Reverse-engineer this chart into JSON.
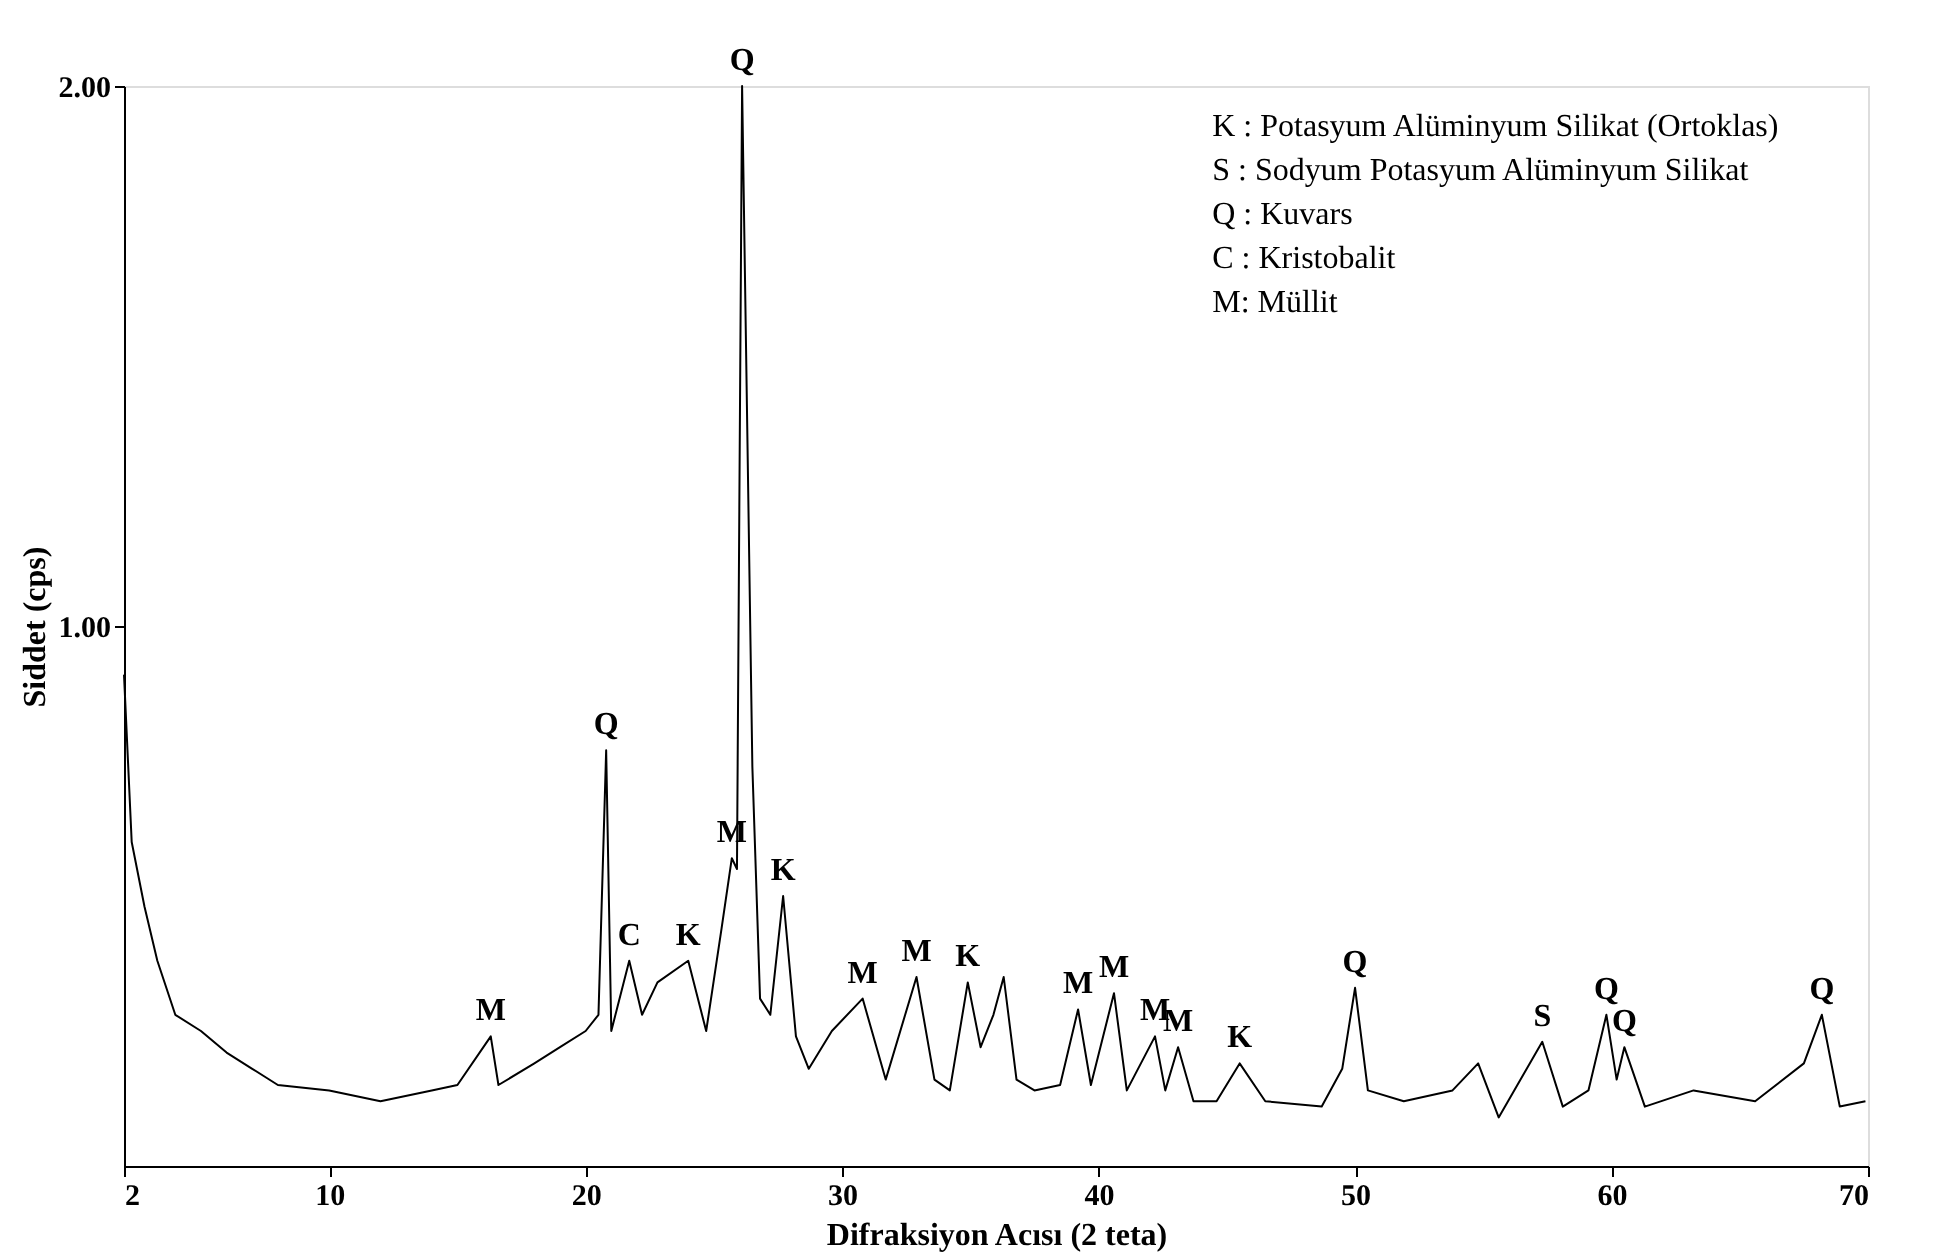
{
  "chart_data": {
    "type": "line",
    "xlabel": "Difraksiyon Acısı (2 teta)",
    "ylabel": "Siddet (cps)",
    "xlim": [
      2,
      70
    ],
    "ylim": [
      0,
      2.0
    ],
    "xticks": [
      2,
      10,
      20,
      30,
      40,
      50,
      60,
      70
    ],
    "yticks": [
      {
        "value": 1,
        "label": "1.00"
      },
      {
        "value": 2,
        "label": "2.00"
      }
    ],
    "grid": false,
    "marker": "none",
    "line_style": "solid",
    "series": [
      {
        "color": "#000000",
        "x": [
          2,
          2.3,
          2.8,
          3.3,
          4,
          5,
          6,
          7,
          8,
          10,
          12,
          14,
          15,
          16.3,
          16.6,
          18,
          19,
          20,
          20.5,
          20.8,
          21.0,
          21.7,
          22.2,
          22.8,
          24.0,
          24.7,
          25.3,
          25.7,
          25.9,
          26.1,
          26.5,
          26.8,
          27.2,
          27.7,
          28.2,
          28.7,
          29.6,
          30.8,
          31.7,
          32.9,
          33.6,
          34.2,
          34.9,
          35.4,
          35.9,
          36.3,
          36.8,
          37.5,
          38.5,
          39.2,
          39.7,
          40.6,
          41.1,
          42.2,
          42.6,
          43.1,
          43.7,
          44.6,
          45.5,
          46.5,
          48.7,
          49.5,
          50.0,
          50.5,
          51.9,
          53.8,
          54.8,
          55.6,
          57.3,
          58.1,
          59.1,
          59.8,
          60.2,
          60.5,
          61.3,
          63.2,
          65.6,
          67.5,
          68.2,
          68.9,
          69.9
        ],
        "values": [
          0.91,
          0.6,
          0.48,
          0.38,
          0.28,
          0.25,
          0.21,
          0.18,
          0.15,
          0.14,
          0.12,
          0.14,
          0.15,
          0.24,
          0.15,
          0.19,
          0.22,
          0.25,
          0.28,
          0.77,
          0.25,
          0.38,
          0.28,
          0.34,
          0.38,
          0.25,
          0.44,
          0.57,
          0.55,
          2.0,
          0.74,
          0.31,
          0.28,
          0.5,
          0.24,
          0.18,
          0.25,
          0.31,
          0.16,
          0.35,
          0.16,
          0.14,
          0.34,
          0.22,
          0.28,
          0.35,
          0.16,
          0.14,
          0.15,
          0.29,
          0.15,
          0.32,
          0.14,
          0.24,
          0.14,
          0.22,
          0.12,
          0.12,
          0.19,
          0.12,
          0.11,
          0.18,
          0.33,
          0.14,
          0.12,
          0.14,
          0.19,
          0.09,
          0.23,
          0.11,
          0.14,
          0.28,
          0.16,
          0.22,
          0.11,
          0.14,
          0.12,
          0.19,
          0.28,
          0.11,
          0.12
        ]
      }
    ],
    "annotations": [
      {
        "text": "M",
        "x": 16.3,
        "y": 0.24
      },
      {
        "text": "Q",
        "x": 20.8,
        "y": 0.77
      },
      {
        "text": "C",
        "x": 21.7,
        "y": 0.38
      },
      {
        "text": "K",
        "x": 24.0,
        "y": 0.38
      },
      {
        "text": "M",
        "x": 25.7,
        "y": 0.57
      },
      {
        "text": "Q",
        "x": 26.1,
        "y": 2.0
      },
      {
        "text": "K",
        "x": 27.7,
        "y": 0.5
      },
      {
        "text": "M",
        "x": 30.8,
        "y": 0.31
      },
      {
        "text": "M",
        "x": 32.9,
        "y": 0.35
      },
      {
        "text": "K",
        "x": 34.9,
        "y": 0.34
      },
      {
        "text": "M",
        "x": 39.2,
        "y": 0.29
      },
      {
        "text": "M",
        "x": 40.6,
        "y": 0.32
      },
      {
        "text": "M",
        "x": 42.2,
        "y": 0.24
      },
      {
        "text": "M",
        "x": 43.1,
        "y": 0.22
      },
      {
        "text": "K",
        "x": 45.5,
        "y": 0.19
      },
      {
        "text": "Q",
        "x": 50.0,
        "y": 0.33
      },
      {
        "text": "S",
        "x": 57.3,
        "y": 0.23
      },
      {
        "text": "Q",
        "x": 59.8,
        "y": 0.28
      },
      {
        "text": "Q",
        "x": 60.5,
        "y": 0.22
      },
      {
        "text": "Q",
        "x": 68.2,
        "y": 0.28
      },
      "K : Potasyum Alüminyum Silikat (Ortoklas)",
      "S  : Sodyum Potasyum Alüminyum Silikat",
      "Q : Kuvars",
      "C : Kristobalit",
      "M: Müllit"
    ]
  }
}
